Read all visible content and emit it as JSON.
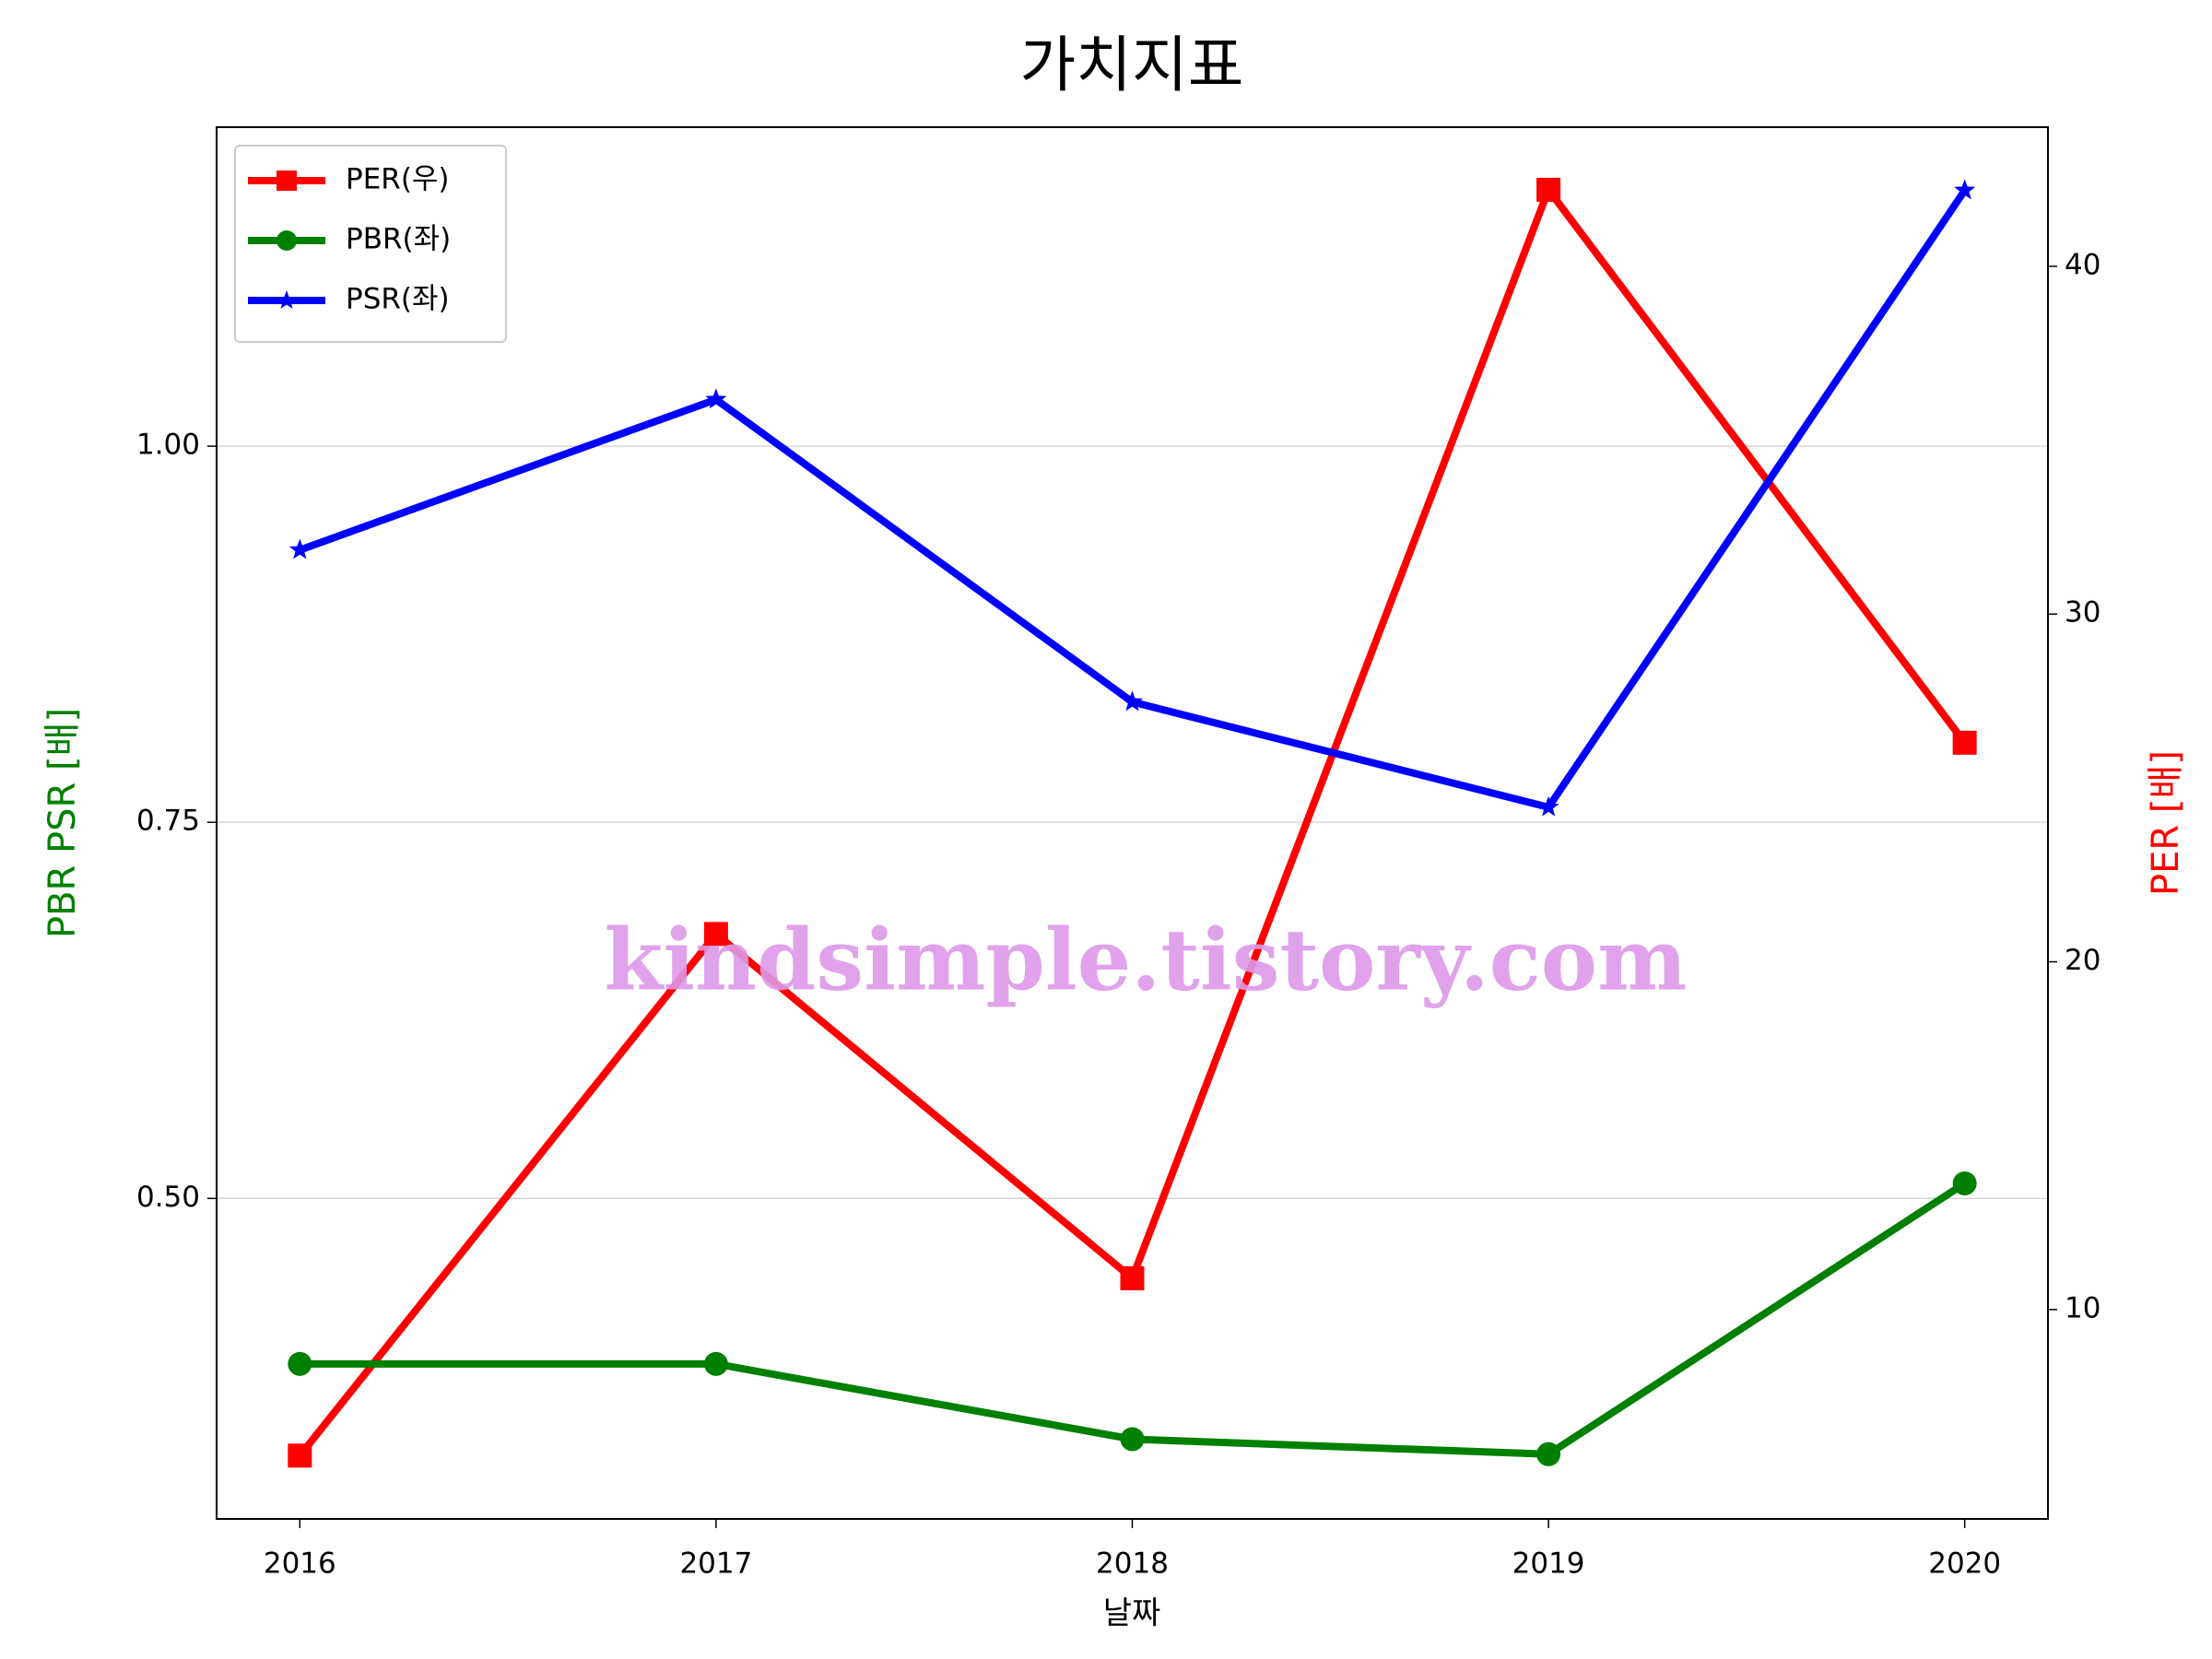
{
  "chart_data": {
    "type": "line",
    "title": "가치지표",
    "xlabel": "날짜",
    "ylabel": "PBR PSR [배]",
    "y2label": "PER [배]",
    "x": [
      2016,
      2017,
      2018,
      2019,
      2020
    ],
    "xlim": [
      2015.8,
      2020.2
    ],
    "xticks": [
      2016,
      2017,
      2018,
      2019,
      2020
    ],
    "ylim": [
      0.287,
      1.212
    ],
    "yticks": [
      {
        "value": 0.5,
        "label": "0.50"
      },
      {
        "value": 0.75,
        "label": "0.75"
      },
      {
        "value": 1.0,
        "label": "1.00"
      }
    ],
    "y2lim": [
      3.98,
      44.0
    ],
    "y2ticks": [
      10,
      20,
      30,
      40
    ],
    "grid": true,
    "legend": "upper left",
    "ylabel_color": "#008000",
    "y2label_color": "#ff0000",
    "watermark": "kindsimple.tistory.com",
    "series": [
      {
        "name": "PER(우)",
        "color": "#ff0000",
        "marker": "square",
        "axis": "y2",
        "values": [
          5.8,
          20.8,
          10.9,
          42.2,
          26.3
        ]
      },
      {
        "name": "PBR(좌)",
        "color": "#008000",
        "marker": "circle",
        "values": [
          0.39,
          0.39,
          0.34,
          0.33,
          0.51
        ]
      },
      {
        "name": "PSR(좌)",
        "color": "#0000ff",
        "marker": "star",
        "values": [
          0.931,
          1.031,
          0.83,
          0.76,
          1.17
        ]
      }
    ]
  }
}
